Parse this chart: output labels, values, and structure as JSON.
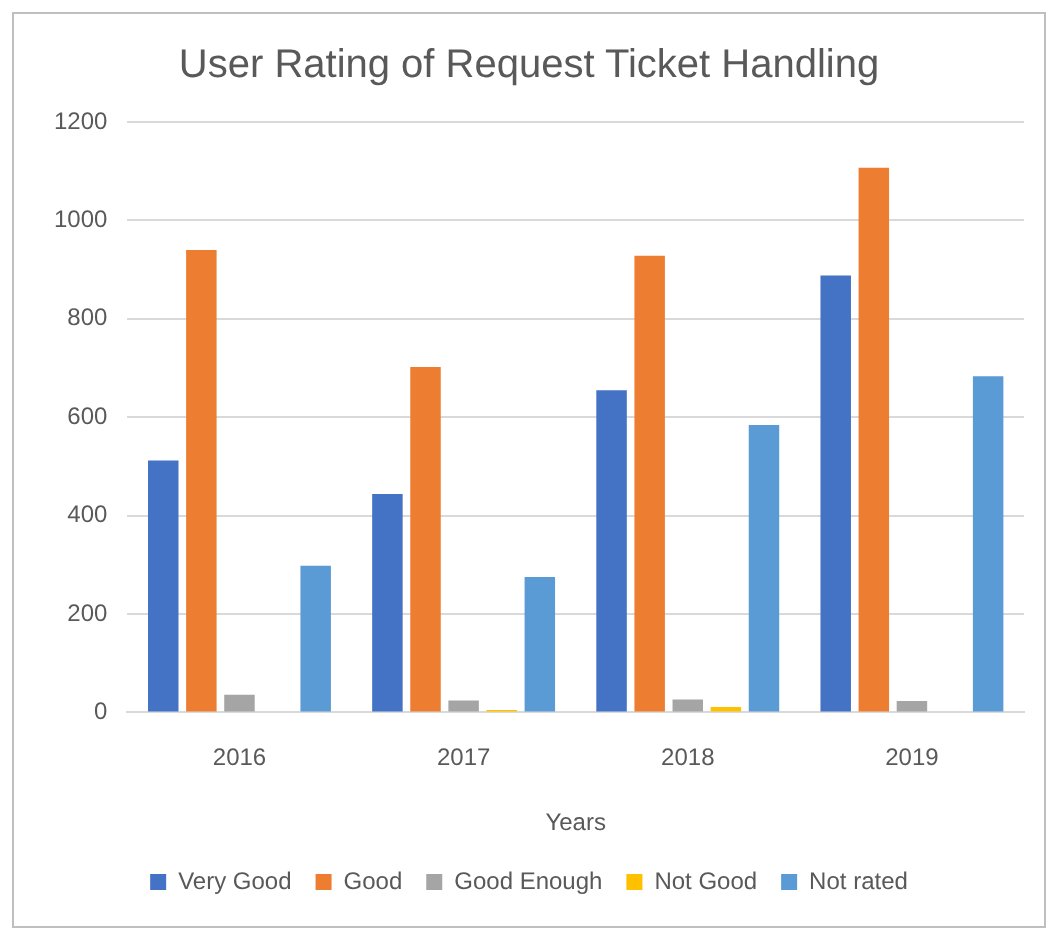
{
  "chart_data": {
    "type": "bar",
    "title": "User Rating of Request Ticket Handling",
    "xlabel": "Years",
    "categories": [
      "2016",
      "2017",
      "2018",
      "2019"
    ],
    "series": [
      {
        "name": "Very Good",
        "color": "#4472c4",
        "values": [
          512,
          444,
          655,
          888
        ]
      },
      {
        "name": "Good",
        "color": "#ed7d31",
        "values": [
          940,
          702,
          928,
          1107
        ]
      },
      {
        "name": "Good Enough",
        "color": "#a5a5a5",
        "values": [
          36,
          24,
          26,
          23
        ]
      },
      {
        "name": "Not Good",
        "color": "#ffc000",
        "values": [
          0,
          5,
          11,
          0
        ]
      },
      {
        "name": "Not rated",
        "color": "#5b9bd5",
        "values": [
          298,
          275,
          584,
          683
        ]
      }
    ],
    "ylim": [
      0,
      1200
    ],
    "yticks": [
      0,
      200,
      400,
      600,
      800,
      1000,
      1200
    ],
    "grid": "y",
    "legend": "bottom"
  }
}
